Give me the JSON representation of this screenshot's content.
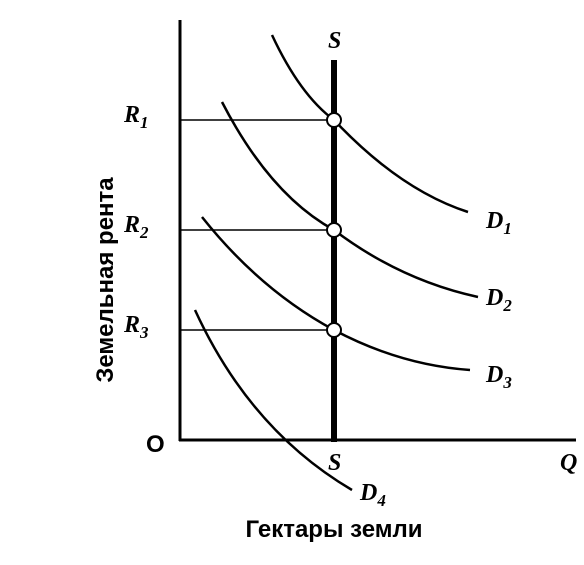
{
  "axes": {
    "y_label": "Земельная рента",
    "x_label": "Гектары земли",
    "origin": "O",
    "x_end": "Q"
  },
  "supply": {
    "top_label": "S",
    "bottom_label": "S"
  },
  "rents": [
    {
      "letter": "R",
      "sub": "1"
    },
    {
      "letter": "R",
      "sub": "2"
    },
    {
      "letter": "R",
      "sub": "3"
    }
  ],
  "demand": [
    {
      "letter": "D",
      "sub": "1"
    },
    {
      "letter": "D",
      "sub": "2"
    },
    {
      "letter": "D",
      "sub": "3"
    },
    {
      "letter": "D",
      "sub": "4"
    }
  ]
}
